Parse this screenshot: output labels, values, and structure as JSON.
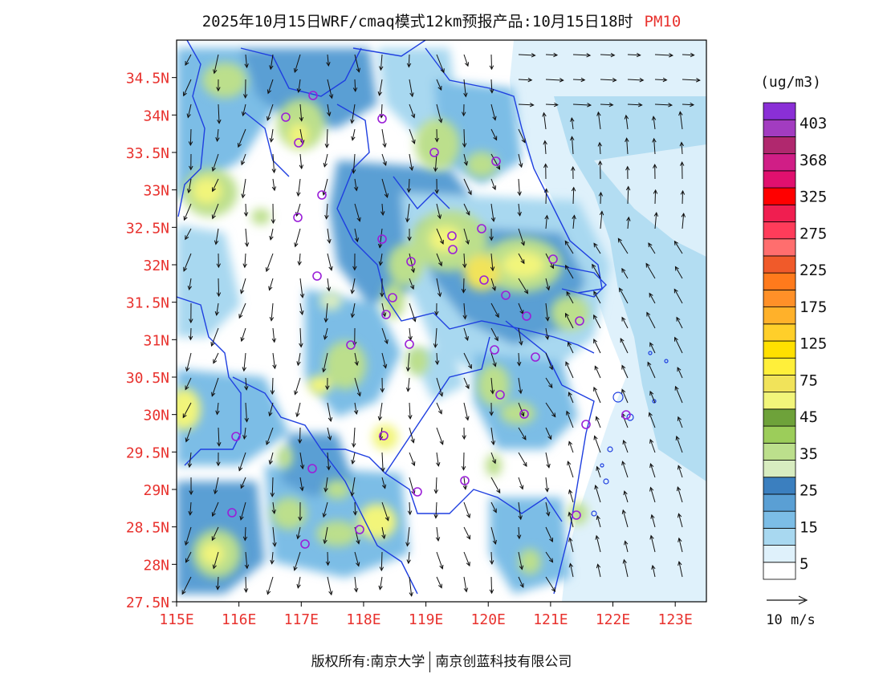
{
  "header": {
    "title": "2025年10月15日WRF/cmaq模式12km预报产品:10月15日18时",
    "pollutant": "PM10"
  },
  "map": {
    "lat_labels": [
      "34.5N",
      "34N",
      "33.5N",
      "33N",
      "32.5N",
      "32N",
      "31.5N",
      "31N",
      "30.5N",
      "30N",
      "29.5N",
      "29N",
      "28.5N",
      "28N",
      "27.5N"
    ],
    "lat_values": [
      34.5,
      34,
      33.5,
      33,
      32.5,
      32,
      31.5,
      31,
      30.5,
      30,
      29.5,
      29,
      28.5,
      28,
      27.5
    ],
    "lon_labels": [
      "115E",
      "116E",
      "117E",
      "118E",
      "119E",
      "120E",
      "121E",
      "122E",
      "123E"
    ],
    "lon_values": [
      115,
      116,
      117,
      118,
      119,
      120,
      121,
      122,
      123
    ],
    "lon_range": [
      115,
      123.5
    ],
    "lat_range": [
      27.5,
      35
    ],
    "label_color": "#e8322e",
    "boundary_color": "#1f3fe0",
    "station_color": "#9a1fd8"
  },
  "legend": {
    "unit": "(ug/m3)",
    "labels": [
      "403",
      "368",
      "325",
      "275",
      "225",
      "175",
      "125",
      "75",
      "45",
      "35",
      "25",
      "15",
      "5"
    ],
    "colors": [
      "#ffffff",
      "#dff1fb",
      "#a8d8f0",
      "#7cbde6",
      "#5a9fd4",
      "#3b7fbf",
      "#d8ecc0",
      "#bcdf8c",
      "#9ccd5a",
      "#6ea23a",
      "#f2f57a",
      "#f1e35a",
      "#ffef3a",
      "#ffe000",
      "#ffcf2a",
      "#ffb12a",
      "#ff9028",
      "#ff7a1c",
      "#f05a2a",
      "#ff6e6e",
      "#ff3c5a",
      "#f01e50",
      "#ff0000",
      "#e0106e",
      "#d01e86",
      "#b0286e",
      "#a23cc0",
      "#8a2fd6"
    ]
  },
  "wind_key": {
    "label": "10 m/s"
  },
  "footer": {
    "copyright": "版权所有:南京大学",
    "company": "南京创蓝科技有限公司"
  }
}
